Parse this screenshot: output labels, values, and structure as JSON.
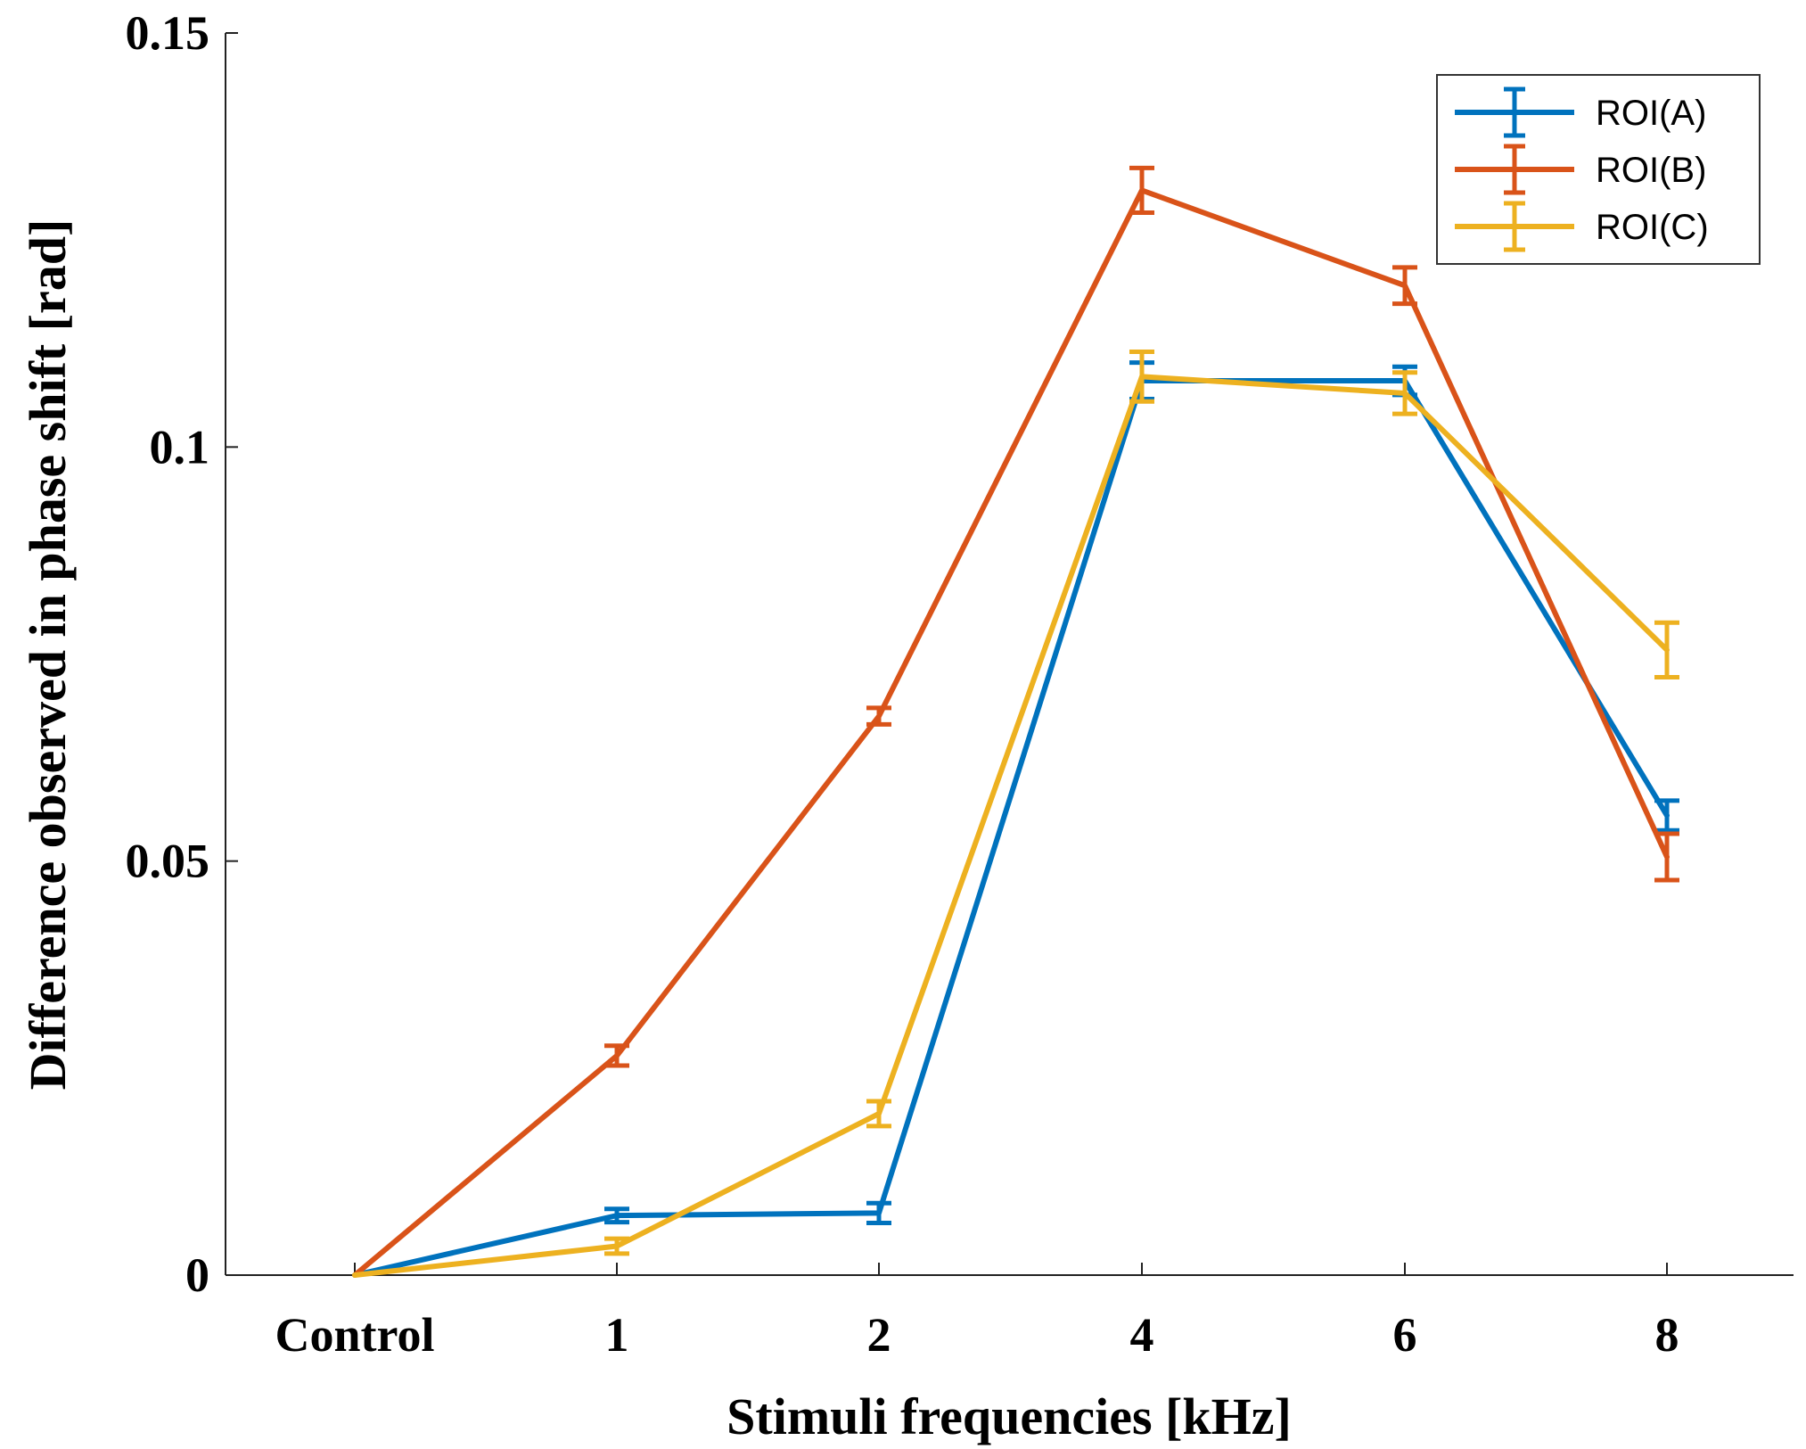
{
  "chart_data": {
    "type": "line",
    "categories": [
      "Control",
      "1",
      "2",
      "4",
      "6",
      "8"
    ],
    "xlabel": "Stimuli frequencies [kHz]",
    "ylabel": "Difference observed in phase shift [rad]",
    "ylim": [
      0,
      0.15
    ],
    "yticks": [
      0,
      0.05,
      0.1,
      0.15
    ],
    "ytick_labels": [
      "0",
      "0.05",
      "0.1",
      "0.15"
    ],
    "grid": false,
    "legend_position": "top-right",
    "series": [
      {
        "name": "ROI(A)",
        "color": "#0072BD",
        "values": [
          0,
          0.0072,
          0.0075,
          0.108,
          0.108,
          0.0555
        ],
        "errors": [
          0,
          0.0008,
          0.0012,
          0.0022,
          0.0017,
          0.0018
        ]
      },
      {
        "name": "ROI(B)",
        "color": "#D95319",
        "values": [
          0,
          0.0265,
          0.0675,
          0.131,
          0.1195,
          0.0505
        ],
        "errors": [
          0,
          0.0012,
          0.001,
          0.0027,
          0.0022,
          0.0028
        ]
      },
      {
        "name": "ROI(C)",
        "color": "#EDB120",
        "values": [
          0,
          0.0035,
          0.0195,
          0.1085,
          0.1065,
          0.0755
        ],
        "errors": [
          0,
          0.0009,
          0.0015,
          0.003,
          0.0025,
          0.0033
        ]
      }
    ]
  }
}
